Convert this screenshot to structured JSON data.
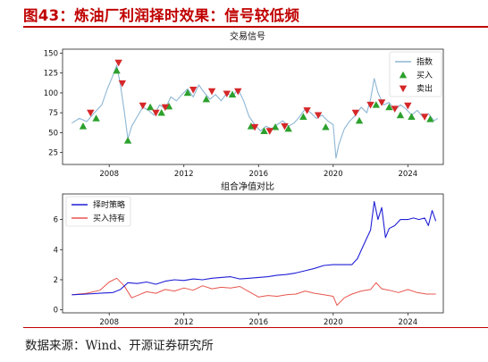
{
  "figure": {
    "title": "图43：炼油厂利润择时效果：信号较低频",
    "source": "数据来源：Wind、开源证券研究所"
  },
  "colors": {
    "title_red": "#c00000",
    "index_line": "#8db6d4",
    "buy_marker": "#2ca02c",
    "sell_marker": "#d62728",
    "strategy_line": "#1f1fd6",
    "hold_line": "#e8554e"
  },
  "chart_data": [
    {
      "type": "line",
      "title": "交易信号",
      "xlim": [
        2005.5,
        2025.9
      ],
      "ylim": [
        10,
        155
      ],
      "x_ticks": [
        2008,
        2012,
        2016,
        2020,
        2024
      ],
      "y_ticks": [
        25,
        50,
        75,
        100,
        125,
        150
      ],
      "legend_position": "top-right",
      "grid": false,
      "series": [
        {
          "name": "指数",
          "x": [
            2006.0,
            2006.4,
            2006.8,
            2007.2,
            2007.6,
            2007.9,
            2008.2,
            2008.4,
            2008.6,
            2008.8,
            2009.0,
            2009.2,
            2009.5,
            2009.8,
            2010.1,
            2010.4,
            2010.7,
            2011.0,
            2011.3,
            2011.6,
            2011.9,
            2012.2,
            2012.5,
            2012.8,
            2013.1,
            2013.4,
            2013.7,
            2014.0,
            2014.3,
            2014.6,
            2014.9,
            2015.2,
            2015.5,
            2015.8,
            2016.1,
            2016.4,
            2016.7,
            2017.0,
            2017.3,
            2017.6,
            2017.9,
            2018.2,
            2018.5,
            2018.8,
            2019.1,
            2019.4,
            2019.7,
            2020.0,
            2020.15,
            2020.3,
            2020.6,
            2020.9,
            2021.2,
            2021.5,
            2021.8,
            2022.0,
            2022.2,
            2022.4,
            2022.7,
            2023.0,
            2023.3,
            2023.6,
            2023.9,
            2024.2,
            2024.5,
            2024.8,
            2025.1,
            2025.4,
            2025.6
          ],
          "values": [
            62,
            68,
            64,
            75,
            85,
            105,
            122,
            135,
            110,
            78,
            42,
            58,
            70,
            82,
            78,
            72,
            85,
            80,
            95,
            90,
            98,
            105,
            95,
            110,
            100,
            92,
            98,
            90,
            100,
            95,
            105,
            90,
            70,
            60,
            52,
            58,
            55,
            60,
            65,
            58,
            62,
            70,
            80,
            75,
            68,
            72,
            65,
            60,
            18,
            35,
            55,
            65,
            72,
            82,
            75,
            92,
            118,
            100,
            85,
            88,
            78,
            85,
            80,
            72,
            78,
            70,
            74,
            65,
            68
          ]
        }
      ],
      "buy_signals": {
        "name": "买入",
        "x": [
          2006.6,
          2007.3,
          2008.4,
          2009.0,
          2010.2,
          2010.8,
          2011.2,
          2012.2,
          2013.2,
          2014.6,
          2015.6,
          2016.3,
          2016.9,
          2017.6,
          2018.4,
          2019.6,
          2021.4,
          2022.3,
          2023.0,
          2023.6,
          2024.2,
          2025.2
        ],
        "values": [
          58,
          68,
          128,
          40,
          82,
          75,
          83,
          100,
          92,
          98,
          58,
          52,
          57,
          55,
          70,
          57,
          65,
          85,
          82,
          72,
          70,
          67
        ]
      },
      "sell_signals": {
        "name": "卖出",
        "x": [
          2007.0,
          2008.5,
          2008.7,
          2009.8,
          2010.5,
          2011.0,
          2012.5,
          2013.5,
          2014.3,
          2014.9,
          2015.8,
          2016.6,
          2017.4,
          2018.6,
          2019.2,
          2021.2,
          2022.0,
          2022.6,
          2023.3,
          2024.0,
          2024.9
        ],
        "values": [
          75,
          138,
          112,
          84,
          75,
          82,
          104,
          102,
          99,
          102,
          57,
          52,
          58,
          78,
          72,
          75,
          85,
          88,
          80,
          84,
          70
        ]
      }
    },
    {
      "type": "line",
      "title": "组合净值对比",
      "xlim": [
        2005.5,
        2025.9
      ],
      "ylim": [
        -0.2,
        7.7
      ],
      "x_ticks": [
        2008,
        2012,
        2016,
        2020,
        2024
      ],
      "y_ticks": [
        0,
        2,
        4,
        6
      ],
      "legend_position": "top-left",
      "grid": false,
      "series": [
        {
          "name": "择时策略",
          "x": [
            2006.0,
            2006.8,
            2007.5,
            2008.2,
            2008.6,
            2009.0,
            2009.5,
            2010.0,
            2010.5,
            2011.0,
            2011.5,
            2012.0,
            2012.5,
            2013.0,
            2013.5,
            2014.0,
            2014.5,
            2015.0,
            2015.5,
            2016.0,
            2016.5,
            2017.0,
            2017.5,
            2018.0,
            2018.5,
            2019.0,
            2019.5,
            2020.0,
            2020.5,
            2021.0,
            2021.3,
            2021.7,
            2022.0,
            2022.2,
            2022.4,
            2022.6,
            2022.8,
            2023.0,
            2023.3,
            2023.6,
            2024.0,
            2024.3,
            2024.6,
            2024.9,
            2025.1,
            2025.3,
            2025.5
          ],
          "values": [
            1.0,
            1.05,
            1.1,
            1.15,
            1.35,
            1.8,
            1.75,
            1.85,
            1.7,
            1.9,
            2.0,
            1.95,
            2.05,
            2.0,
            2.1,
            2.15,
            2.2,
            2.05,
            2.1,
            2.15,
            2.2,
            2.3,
            2.35,
            2.45,
            2.6,
            2.75,
            2.95,
            3.0,
            3.0,
            3.0,
            3.4,
            4.5,
            5.3,
            7.2,
            6.0,
            6.8,
            4.8,
            5.4,
            5.6,
            6.0,
            6.0,
            6.1,
            6.0,
            6.1,
            5.6,
            6.6,
            5.9
          ]
        },
        {
          "name": "买入持有",
          "x": [
            2006.0,
            2006.8,
            2007.5,
            2008.0,
            2008.4,
            2008.8,
            2009.2,
            2009.6,
            2010.0,
            2010.5,
            2011.0,
            2011.5,
            2012.0,
            2012.5,
            2013.0,
            2013.5,
            2014.0,
            2014.5,
            2015.0,
            2015.5,
            2016.0,
            2016.5,
            2017.0,
            2017.5,
            2018.0,
            2018.5,
            2019.0,
            2019.5,
            2020.0,
            2020.2,
            2020.6,
            2021.0,
            2021.5,
            2022.0,
            2022.3,
            2022.6,
            2023.0,
            2023.5,
            2024.0,
            2024.5,
            2025.0,
            2025.5
          ],
          "values": [
            1.0,
            1.1,
            1.3,
            1.85,
            2.1,
            1.6,
            0.8,
            1.0,
            1.2,
            1.1,
            1.35,
            1.25,
            1.45,
            1.3,
            1.6,
            1.4,
            1.5,
            1.45,
            1.55,
            1.2,
            0.85,
            0.95,
            0.9,
            1.0,
            1.05,
            1.25,
            1.1,
            1.0,
            0.9,
            0.3,
            0.8,
            1.05,
            1.25,
            1.35,
            1.8,
            1.4,
            1.3,
            1.15,
            1.35,
            1.15,
            1.05,
            1.05
          ]
        }
      ]
    }
  ]
}
